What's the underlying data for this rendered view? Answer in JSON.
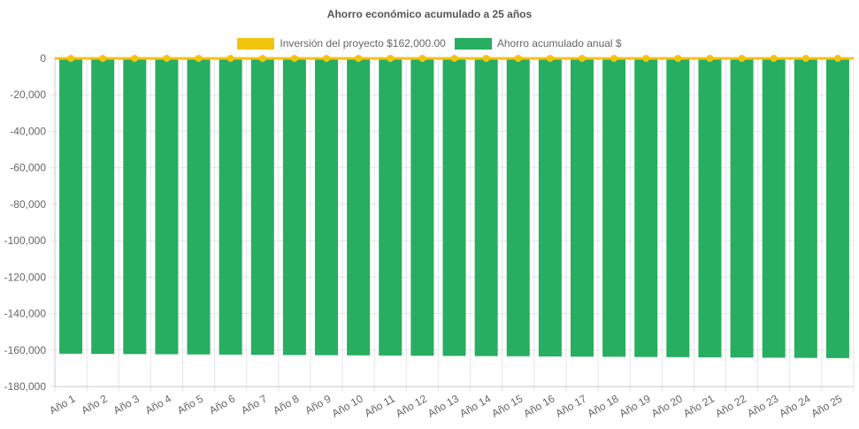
{
  "chart_data": {
    "type": "bar",
    "title": "Ahorro económico acumulado a 25 años",
    "categories": [
      "Año 1",
      "Año 2",
      "Año 3",
      "Año 4",
      "Año 5",
      "Año 6",
      "Año 7",
      "Año 8",
      "Año 9",
      "Año 10",
      "Año 11",
      "Año 12",
      "Año 13",
      "Año 14",
      "Año 15",
      "Año 16",
      "Año 17",
      "Año 18",
      "Año 19",
      "Año 20",
      "Año 21",
      "Año 22",
      "Año 23",
      "Año 24",
      "Año 25"
    ],
    "series": [
      {
        "name": "Inversión del proyecto $162,000.00",
        "type": "line",
        "color": "#f2c40f",
        "values": [
          0,
          0,
          0,
          0,
          0,
          0,
          0,
          0,
          0,
          0,
          0,
          0,
          0,
          0,
          0,
          0,
          0,
          0,
          0,
          0,
          0,
          0,
          0,
          0,
          0
        ]
      },
      {
        "name": "Ahorro acumulado anual $",
        "type": "bar",
        "color": "#27ae60",
        "values": [
          -162000,
          -162100,
          -162200,
          -162300,
          -162400,
          -162500,
          -162600,
          -162700,
          -162800,
          -162900,
          -163000,
          -163100,
          -163200,
          -163300,
          -163400,
          -163500,
          -163600,
          -163700,
          -163800,
          -163900,
          -164000,
          -164100,
          -164200,
          -164300,
          -164400
        ]
      }
    ],
    "ylim": [
      -180000,
      0
    ],
    "yticks": [
      "0",
      "-20,000",
      "-40,000",
      "-60,000",
      "-80,000",
      "-100,000",
      "-120,000",
      "-140,000",
      "-160,000",
      "-180,000"
    ],
    "grid": true,
    "legend_position": "top"
  }
}
